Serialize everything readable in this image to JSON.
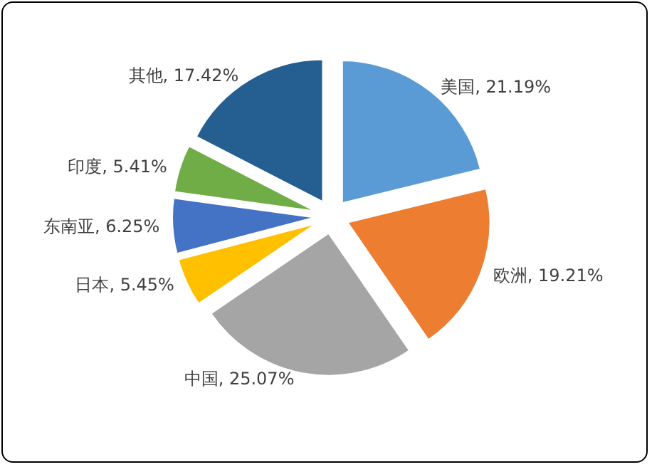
{
  "chart_data": {
    "type": "pie",
    "categories": [
      "美国",
      "欧洲",
      "中国",
      "日本",
      "东南亚",
      "印度",
      "其他"
    ],
    "values": [
      21.19,
      19.21,
      25.07,
      5.45,
      6.25,
      5.41,
      17.42
    ],
    "value_labels": [
      ", 21.19%",
      ", 19.21%",
      ", 25.07%",
      ", 5.45%",
      ", 6.25%",
      ", 5.41%",
      ", 17.42%"
    ],
    "colors": [
      "#5b9bd5",
      "#ed7d31",
      "#a5a5a5",
      "#ffc000",
      "#4472c4",
      "#70ad47",
      "#255e91"
    ],
    "legend": false
  }
}
